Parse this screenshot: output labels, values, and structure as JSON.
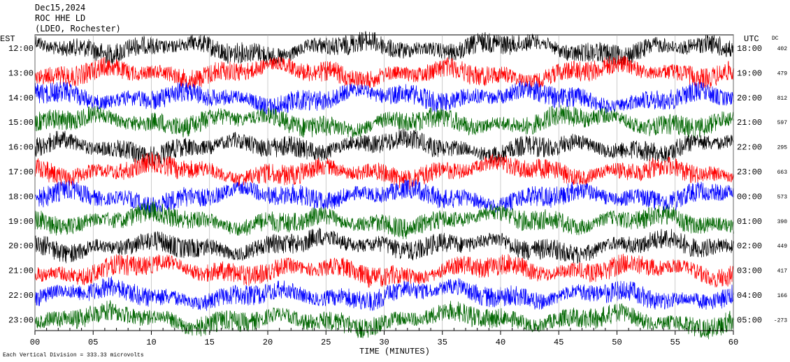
{
  "header": {
    "date": "Dec15,2024",
    "station": "ROC HHE LD",
    "network": "(LDEO, Rochester)"
  },
  "chart_data": {
    "type": "line",
    "title": "",
    "xlabel": "TIME (MINUTES)",
    "left_label": "EST",
    "right_label": "UTC",
    "dc_label": "DC",
    "xlim": [
      0,
      60
    ],
    "x_ticks": [
      "00",
      "05",
      "10",
      "15",
      "20",
      "25",
      "30",
      "35",
      "40",
      "45",
      "50",
      "55",
      "60"
    ],
    "trace_colors": [
      "#000000",
      "#ff0000",
      "#0000ff",
      "#006600"
    ],
    "rows": [
      {
        "est": "12:00",
        "utc": "18:00",
        "dc": "402"
      },
      {
        "est": "13:00",
        "utc": "19:00",
        "dc": "479"
      },
      {
        "est": "14:00",
        "utc": "20:00",
        "dc": "812"
      },
      {
        "est": "15:00",
        "utc": "21:00",
        "dc": "597"
      },
      {
        "est": "16:00",
        "utc": "22:00",
        "dc": "295"
      },
      {
        "est": "17:00",
        "utc": "23:00",
        "dc": "663"
      },
      {
        "est": "18:00",
        "utc": "00:00",
        "dc": "573"
      },
      {
        "est": "19:00",
        "utc": "01:00",
        "dc": "390"
      },
      {
        "est": "20:00",
        "utc": "02:00",
        "dc": "449"
      },
      {
        "est": "21:00",
        "utc": "03:00",
        "dc": "417"
      },
      {
        "est": "22:00",
        "utc": "04:00",
        "dc": "166"
      },
      {
        "est": "23:00",
        "utc": "05:00",
        "dc": "-273"
      }
    ],
    "scale_note": "Each Vertical Division = 333.33 microvolts"
  }
}
